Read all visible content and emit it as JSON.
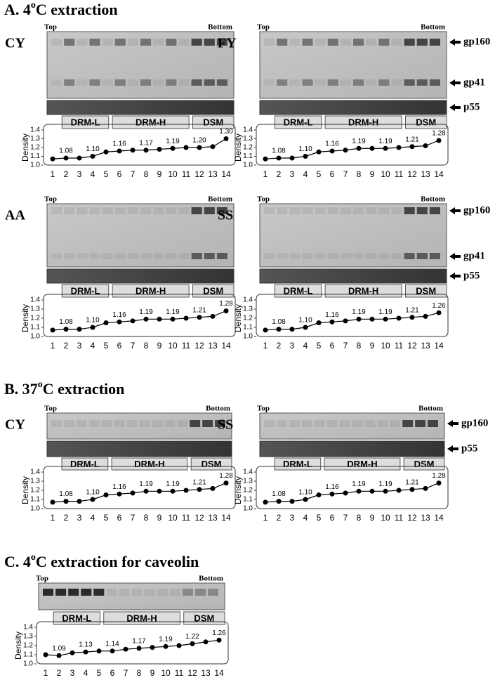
{
  "sections": [
    {
      "label": "A. 4",
      "sup": "o",
      "rest": "C extraction"
    },
    {
      "label": "B. 37",
      "sup": "o",
      "rest": "C extraction"
    },
    {
      "label": "C. 4",
      "sup": "o",
      "rest": "C extraction for caveolin"
    }
  ],
  "gels": [
    {
      "name": "CY",
      "top": "Top",
      "bottom": "Bottom",
      "fractions": [
        "DRM-L",
        "DRM-H",
        "DSM"
      ]
    },
    {
      "name": "FY",
      "top": "Top",
      "bottom": "Bottom",
      "fractions": [
        "DRM-L",
        "DRM-H",
        "DSM"
      ],
      "markers": [
        "gp160",
        "gp41",
        "p55"
      ]
    },
    {
      "name": "AA",
      "top": "Top",
      "bottom": "Bottom",
      "fractions": [
        "DRM-L",
        "DRM-H",
        "DSM"
      ]
    },
    {
      "name": "SS",
      "top": "Top",
      "bottom": "Bottom",
      "fractions": [
        "DRM-L",
        "DRM-H",
        "DSM"
      ],
      "markers": [
        "gp160",
        "gp41",
        "p55"
      ]
    },
    {
      "name": "CY",
      "top": "Top",
      "bottom": "Bottom",
      "fractions": [
        "DRM-L",
        "DRM-H",
        "DSM"
      ]
    },
    {
      "name": "SS",
      "top": "Top",
      "bottom": "Bottom",
      "fractions": [
        "DRM-L",
        "DRM-H",
        "DSM"
      ],
      "markers": [
        "gp160",
        "p55"
      ]
    },
    {
      "top": "Top",
      "bottom": "Bottom",
      "fractions": [
        "DRM-L",
        "DRM-H",
        "DSM"
      ]
    }
  ],
  "chart_data": [
    {
      "type": "line",
      "y_label": "Density",
      "color": "#000000",
      "categories": [
        "1",
        "2",
        "3",
        "4",
        "5",
        "6",
        "7",
        "8",
        "9",
        "10",
        "11",
        "12",
        "13",
        "14"
      ],
      "values": [
        1.07,
        1.08,
        1.08,
        1.1,
        1.15,
        1.16,
        1.17,
        1.17,
        1.18,
        1.19,
        1.2,
        1.2,
        1.21,
        1.3
      ],
      "value_labels": [
        null,
        "1.08",
        null,
        "1.10",
        null,
        "1.16",
        null,
        "1.17",
        null,
        "1.19",
        null,
        "1.20",
        null,
        "1.30"
      ],
      "ylim": [
        1.0,
        1.4
      ],
      "yticks": [
        {
          "value": 1.0,
          "label": "1.0"
        },
        1.1,
        1.2,
        1.3,
        1.4
      ]
    },
    {
      "type": "line",
      "y_label": "Density",
      "color": "#000000",
      "categories": [
        "1",
        "2",
        "3",
        "4",
        "5",
        "6",
        "7",
        "8",
        "9",
        "10",
        "11",
        "12",
        "13",
        "14"
      ],
      "values": [
        1.07,
        1.08,
        1.08,
        1.1,
        1.15,
        1.16,
        1.17,
        1.19,
        1.19,
        1.19,
        1.2,
        1.21,
        1.22,
        1.28
      ],
      "value_labels": [
        null,
        "1.08",
        null,
        "1.10",
        null,
        "1.16",
        null,
        "1.19",
        null,
        "1.19",
        null,
        "1.21",
        null,
        "1.28"
      ],
      "ylim": [
        1.0,
        1.4
      ],
      "yticks": [
        {
          "value": 1.0,
          "label": "1.0"
        },
        1.1,
        1.2,
        1.3,
        1.4
      ]
    },
    {
      "type": "line",
      "y_label": "Density",
      "color": "#000000",
      "categories": [
        "1",
        "2",
        "3",
        "4",
        "5",
        "6",
        "7",
        "8",
        "9",
        "10",
        "11",
        "12",
        "13",
        "14"
      ],
      "values": [
        1.07,
        1.08,
        1.08,
        1.1,
        1.15,
        1.16,
        1.17,
        1.19,
        1.19,
        1.19,
        1.2,
        1.21,
        1.22,
        1.28
      ],
      "value_labels": [
        null,
        "1.08",
        null,
        "1.10",
        null,
        "1.16",
        null,
        "1.19",
        null,
        "1.19",
        null,
        "1.21",
        null,
        "1.28"
      ],
      "ylim": [
        1.0,
        1.4
      ],
      "yticks": [
        {
          "value": 1.0,
          "label": "1.0"
        },
        1.1,
        1.2,
        1.3,
        1.4
      ]
    },
    {
      "type": "line",
      "y_label": "Density",
      "color": "#000000",
      "categories": [
        "1",
        "2",
        "3",
        "4",
        "5",
        "6",
        "7",
        "8",
        "9",
        "10",
        "11",
        "12",
        "13",
        "14"
      ],
      "values": [
        1.07,
        1.08,
        1.08,
        1.1,
        1.15,
        1.16,
        1.17,
        1.19,
        1.19,
        1.19,
        1.2,
        1.21,
        1.22,
        1.26
      ],
      "value_labels": [
        null,
        "1.08",
        null,
        "1.10",
        null,
        "1.16",
        null,
        "1.19",
        null,
        "1.19",
        null,
        "1.21",
        null,
        "1.26"
      ],
      "ylim": [
        1.0,
        1.4
      ],
      "yticks": [
        {
          "value": 1.0,
          "label": "1.0"
        },
        1.1,
        1.2,
        1.3,
        1.4
      ]
    },
    {
      "type": "line",
      "y_label": "Density",
      "color": "#000000",
      "categories": [
        "1",
        "2",
        "3",
        "4",
        "5",
        "6",
        "7",
        "8",
        "9",
        "10",
        "11",
        "12",
        "13",
        "14"
      ],
      "values": [
        1.07,
        1.08,
        1.08,
        1.1,
        1.15,
        1.16,
        1.17,
        1.19,
        1.19,
        1.19,
        1.2,
        1.21,
        1.22,
        1.28
      ],
      "value_labels": [
        null,
        "1.08",
        null,
        "1.10",
        null,
        "1.16",
        null,
        "1.19",
        null,
        "1.19",
        null,
        "1.21",
        null,
        "1.28"
      ],
      "ylim": [
        1.0,
        1.4
      ],
      "yticks": [
        {
          "value": 1.0,
          "label": "1.0"
        },
        1.1,
        1.2,
        1.3,
        1.4
      ]
    },
    {
      "type": "line",
      "y_label": "Density",
      "color": "#000000",
      "categories": [
        "1",
        "2",
        "3",
        "4",
        "5",
        "6",
        "7",
        "8",
        "9",
        "10",
        "11",
        "12",
        "13",
        "14"
      ],
      "values": [
        1.07,
        1.08,
        1.08,
        1.1,
        1.15,
        1.16,
        1.17,
        1.19,
        1.19,
        1.19,
        1.2,
        1.21,
        1.22,
        1.28
      ],
      "value_labels": [
        null,
        "1.08",
        null,
        "1.10",
        null,
        "1.16",
        null,
        "1.19",
        null,
        "1.19",
        null,
        "1.21",
        null,
        "1.28"
      ],
      "ylim": [
        1.0,
        1.4
      ],
      "yticks": [
        {
          "value": 1.0,
          "label": "1.0"
        },
        1.1,
        1.2,
        1.3,
        1.4
      ]
    },
    {
      "type": "line",
      "y_label": "Density",
      "color": "#000000",
      "categories": [
        "1",
        "2",
        "3",
        "4",
        "5",
        "6",
        "7",
        "8",
        "9",
        "10",
        "11",
        "12",
        "13",
        "14"
      ],
      "values": [
        1.1,
        1.09,
        1.12,
        1.13,
        1.14,
        1.14,
        1.16,
        1.17,
        1.18,
        1.19,
        1.2,
        1.22,
        1.24,
        1.26
      ],
      "value_labels": [
        null,
        "1.09",
        null,
        "1.13",
        null,
        "1.14",
        null,
        "1.17",
        null,
        "1.19",
        null,
        "1.22",
        null,
        "1.26"
      ],
      "ylim": [
        1.0,
        1.4
      ],
      "yticks": [
        {
          "value": 1.0,
          "label": "1.0"
        },
        1.1,
        1.2,
        1.3,
        1.4
      ]
    }
  ]
}
